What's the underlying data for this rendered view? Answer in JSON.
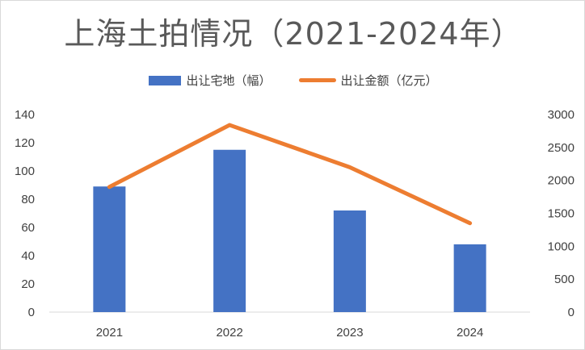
{
  "chart_data": {
    "type": "bar+line",
    "title": "上海土拍情况（2021-2024年）",
    "categories": [
      "2021",
      "2022",
      "2023",
      "2024"
    ],
    "series": [
      {
        "name": "出让宅地（幅）",
        "type": "bar",
        "axis": "left",
        "color": "#4472C4",
        "values": [
          89,
          115,
          72,
          48
        ]
      },
      {
        "name": "出让金额（亿元）",
        "type": "line",
        "axis": "right",
        "color": "#ED7D31",
        "values": [
          1900,
          2840,
          2200,
          1350
        ]
      }
    ],
    "y_left": {
      "min": 0,
      "max": 140,
      "ticks": [
        0,
        20,
        40,
        60,
        80,
        100,
        120,
        140
      ]
    },
    "y_right": {
      "min": 0,
      "max": 3000,
      "ticks": [
        0,
        500,
        1000,
        1500,
        2000,
        2500,
        3000
      ]
    },
    "legend_position": "top",
    "gridlines": false
  }
}
